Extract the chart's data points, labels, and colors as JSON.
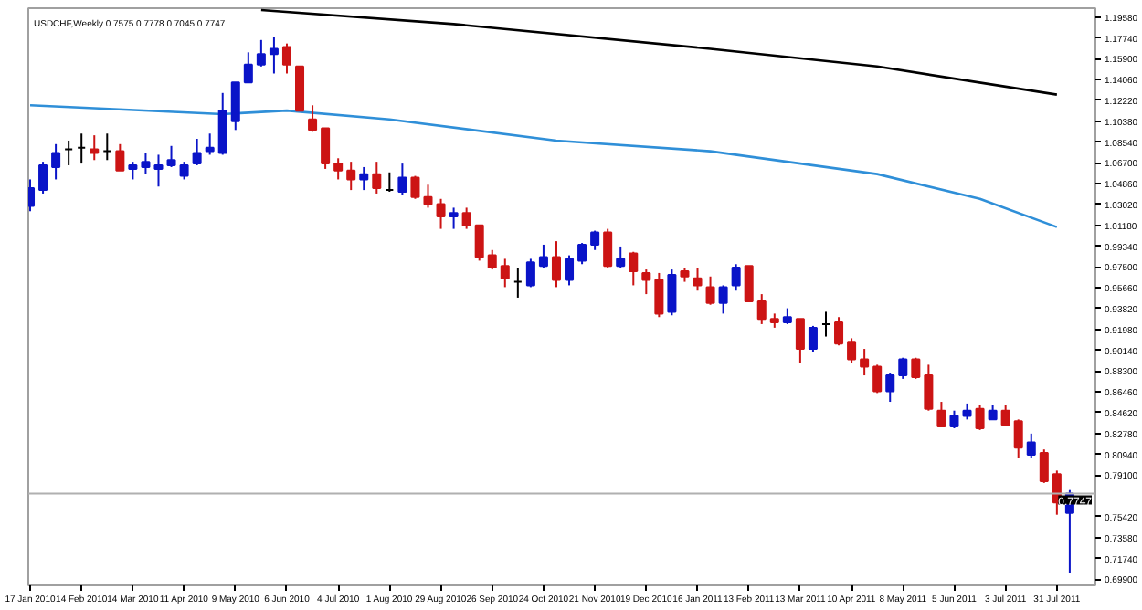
{
  "chart_data": {
    "type": "candlestick",
    "title": "USDCHF,Weekly 0.7575 0.7778 0.7045 0.7747",
    "x": [
      "2010-01-17",
      "2010-01-24",
      "2010-01-31",
      "2010-02-07",
      "2010-02-14",
      "2010-02-21",
      "2010-02-28",
      "2010-03-07",
      "2010-03-14",
      "2010-03-21",
      "2010-03-28",
      "2010-04-04",
      "2010-04-11",
      "2010-04-18",
      "2010-04-25",
      "2010-05-02",
      "2010-05-09",
      "2010-05-16",
      "2010-05-23",
      "2010-05-30",
      "2010-06-06",
      "2010-06-13",
      "2010-06-20",
      "2010-06-27",
      "2010-07-04",
      "2010-07-11",
      "2010-07-18",
      "2010-07-25",
      "2010-08-01",
      "2010-08-08",
      "2010-08-15",
      "2010-08-22",
      "2010-08-29",
      "2010-09-05",
      "2010-09-12",
      "2010-09-19",
      "2010-09-26",
      "2010-10-03",
      "2010-10-10",
      "2010-10-17",
      "2010-10-24",
      "2010-10-31",
      "2010-11-07",
      "2010-11-14",
      "2010-11-21",
      "2010-11-28",
      "2010-12-05",
      "2010-12-12",
      "2010-12-19",
      "2010-12-26",
      "2011-01-02",
      "2011-01-09",
      "2011-01-16",
      "2011-01-23",
      "2011-01-30",
      "2011-02-06",
      "2011-02-13",
      "2011-02-20",
      "2011-02-27",
      "2011-03-06",
      "2011-03-13",
      "2011-03-20",
      "2011-03-27",
      "2011-04-03",
      "2011-04-10",
      "2011-04-17",
      "2011-04-24",
      "2011-05-01",
      "2011-05-08",
      "2011-05-15",
      "2011-05-22",
      "2011-05-29",
      "2011-06-05",
      "2011-06-12",
      "2011-06-19",
      "2011-06-26",
      "2011-07-03",
      "2011-07-10",
      "2011-07-17",
      "2011-07-24",
      "2011-07-31",
      "2011-08-07"
    ],
    "ohlc": [
      [
        1.029,
        1.0524,
        1.0243,
        1.0446
      ],
      [
        1.043,
        1.068,
        1.0399,
        1.0649
      ],
      [
        1.0633,
        1.0836,
        1.0524,
        1.0758
      ],
      [
        1.0789,
        1.0867,
        1.0649,
        1.0789
      ],
      [
        1.0805,
        1.0929,
        1.0664,
        1.0805
      ],
      [
        1.0789,
        1.0914,
        1.0695,
        1.0758
      ],
      [
        1.0773,
        1.0929,
        1.0695,
        1.0773
      ],
      [
        1.0773,
        1.0836,
        1.0602,
        1.0602
      ],
      [
        1.0617,
        1.068,
        1.0524,
        1.0649
      ],
      [
        1.0633,
        1.0758,
        1.0571,
        1.068
      ],
      [
        1.0617,
        1.0742,
        1.0461,
        1.0649
      ],
      [
        1.0649,
        1.082,
        1.0633,
        1.0695
      ],
      [
        1.0555,
        1.068,
        1.0524,
        1.0649
      ],
      [
        1.0664,
        1.0883,
        1.0649,
        1.0758
      ],
      [
        1.0773,
        1.0929,
        1.0742,
        1.0805
      ],
      [
        1.0758,
        1.1288,
        1.0742,
        1.1132
      ],
      [
        1.1039,
        1.1382,
        1.0961,
        1.1382
      ],
      [
        1.1382,
        1.1647,
        1.1382,
        1.1538
      ],
      [
        1.1538,
        1.1756,
        1.1522,
        1.1631
      ],
      [
        1.1631,
        1.1787,
        1.146,
        1.1678
      ],
      [
        1.1694,
        1.1725,
        1.146,
        1.1538
      ],
      [
        1.1522,
        1.1522,
        1.1132,
        1.1132
      ],
      [
        1.1054,
        1.1179,
        1.0945,
        1.0961
      ],
      [
        1.0976,
        1.0976,
        1.0617,
        1.0664
      ],
      [
        1.0664,
        1.0711,
        1.0524,
        1.0602
      ],
      [
        1.0602,
        1.068,
        1.043,
        1.0524
      ],
      [
        1.0524,
        1.0633,
        1.043,
        1.0571
      ],
      [
        1.0571,
        1.068,
        1.0399,
        1.0446
      ],
      [
        1.043,
        1.0586,
        1.0415,
        1.043
      ],
      [
        1.0415,
        1.0664,
        1.0383,
        1.0539
      ],
      [
        1.0539,
        1.0555,
        1.0352,
        1.0368
      ],
      [
        1.0368,
        1.0477,
        1.0274,
        1.0305
      ],
      [
        1.0305,
        1.0352,
        1.0087,
        1.0196
      ],
      [
        1.0196,
        1.0274,
        1.0087,
        1.0227
      ],
      [
        1.0227,
        1.0274,
        1.0087,
        1.0118
      ],
      [
        1.0118,
        1.0118,
        0.9806,
        0.9837
      ],
      [
        0.9853,
        0.99,
        0.9728,
        0.9744
      ],
      [
        0.9759,
        0.9822,
        0.9572,
        0.965
      ],
      [
        0.9619,
        0.9744,
        0.9479,
        0.9619
      ],
      [
        0.9588,
        0.9822,
        0.9572,
        0.9791
      ],
      [
        0.9759,
        0.9947,
        0.9744,
        0.9837
      ],
      [
        0.9837,
        0.9978,
        0.9572,
        0.9635
      ],
      [
        0.9635,
        0.9853,
        0.9588,
        0.9822
      ],
      [
        0.9806,
        0.9962,
        0.9775,
        0.9947
      ],
      [
        0.9947,
        1.0071,
        0.99,
        1.0056
      ],
      [
        1.0056,
        1.0087,
        0.9744,
        0.9759
      ],
      [
        0.9759,
        0.9931,
        0.9744,
        0.9822
      ],
      [
        0.9869,
        0.9884,
        0.9588,
        0.9713
      ],
      [
        0.9697,
        0.9728,
        0.951,
        0.9635
      ],
      [
        0.9635,
        0.9697,
        0.9307,
        0.9338
      ],
      [
        0.9354,
        0.9728,
        0.9323,
        0.9681
      ],
      [
        0.9713,
        0.9744,
        0.9619,
        0.9666
      ],
      [
        0.965,
        0.9744,
        0.9541,
        0.9588
      ],
      [
        0.9572,
        0.9666,
        0.9416,
        0.9432
      ],
      [
        0.9432,
        0.9588,
        0.9338,
        0.9572
      ],
      [
        0.9588,
        0.9775,
        0.9541,
        0.9744
      ],
      [
        0.9759,
        0.9759,
        0.9447,
        0.9447
      ],
      [
        0.9447,
        0.951,
        0.9245,
        0.9291
      ],
      [
        0.9291,
        0.9338,
        0.9213,
        0.926
      ],
      [
        0.926,
        0.9385,
        0.9245,
        0.9307
      ],
      [
        0.9291,
        0.9291,
        0.8901,
        0.9026
      ],
      [
        0.9026,
        0.9229,
        0.8995,
        0.9213
      ],
      [
        0.9245,
        0.9354,
        0.9135,
        0.9245
      ],
      [
        0.926,
        0.9307,
        0.9057,
        0.9073
      ],
      [
        0.9089,
        0.912,
        0.8901,
        0.8933
      ],
      [
        0.8933,
        0.9026,
        0.8792,
        0.887
      ],
      [
        0.887,
        0.8886,
        0.8636,
        0.8652
      ],
      [
        0.8652,
        0.8808,
        0.8558,
        0.8792
      ],
      [
        0.8792,
        0.8948,
        0.8761,
        0.8933
      ],
      [
        0.8933,
        0.8948,
        0.8761,
        0.8777
      ],
      [
        0.8792,
        0.8886,
        0.848,
        0.8496
      ],
      [
        0.848,
        0.8558,
        0.834,
        0.834
      ],
      [
        0.834,
        0.848,
        0.8324,
        0.8433
      ],
      [
        0.8433,
        0.8543,
        0.8402,
        0.848
      ],
      [
        0.8496,
        0.8527,
        0.8309,
        0.8324
      ],
      [
        0.8402,
        0.8527,
        0.8402,
        0.848
      ],
      [
        0.848,
        0.8527,
        0.8355,
        0.8355
      ],
      [
        0.8387,
        0.8402,
        0.8059,
        0.8153
      ],
      [
        0.809,
        0.8277,
        0.8059,
        0.8199
      ],
      [
        0.8106,
        0.8137,
        0.7841,
        0.7856
      ],
      [
        0.7919,
        0.795,
        0.756,
        0.7669
      ],
      [
        0.7575,
        0.7778,
        0.7045,
        0.7747
      ]
    ],
    "colors": [
      "#0a14c8",
      "#0a14c8",
      "#0a14c8",
      "#000000",
      "#000000",
      "#cc1414",
      "#000000",
      "#cc1414",
      "#0a14c8",
      "#0a14c8",
      "#0a14c8",
      "#0a14c8",
      "#0a14c8",
      "#0a14c8",
      "#0a14c8",
      "#0a14c8",
      "#0a14c8",
      "#0a14c8",
      "#0a14c8",
      "#0a14c8",
      "#cc1414",
      "#cc1414",
      "#cc1414",
      "#cc1414",
      "#cc1414",
      "#cc1414",
      "#0a14c8",
      "#cc1414",
      "#000000",
      "#0a14c8",
      "#cc1414",
      "#cc1414",
      "#cc1414",
      "#0a14c8",
      "#cc1414",
      "#cc1414",
      "#cc1414",
      "#cc1414",
      "#000000",
      "#0a14c8",
      "#0a14c8",
      "#cc1414",
      "#0a14c8",
      "#0a14c8",
      "#0a14c8",
      "#cc1414",
      "#0a14c8",
      "#cc1414",
      "#cc1414",
      "#cc1414",
      "#0a14c8",
      "#cc1414",
      "#cc1414",
      "#cc1414",
      "#0a14c8",
      "#0a14c8",
      "#cc1414",
      "#cc1414",
      "#cc1414",
      "#0a14c8",
      "#cc1414",
      "#0a14c8",
      "#000000",
      "#cc1414",
      "#cc1414",
      "#cc1414",
      "#cc1414",
      "#0a14c8",
      "#0a14c8",
      "#cc1414",
      "#cc1414",
      "#cc1414",
      "#0a14c8",
      "#0a14c8",
      "#cc1414",
      "#0a14c8",
      "#cc1414",
      "#cc1414",
      "#0a14c8",
      "#cc1414",
      "#cc1414",
      "#0a14c8"
    ],
    "series": [
      {
        "type": "line",
        "color": "#000000",
        "x": [
          "2010-05-23",
          "2010-09-05",
          "2011-01-23",
          "2011-04-24",
          "2011-07-31"
        ],
        "values": [
          1.2021,
          1.1897,
          1.1678,
          1.1522,
          1.1273
        ]
      },
      {
        "type": "line",
        "color": "#2f8fd8",
        "x": [
          "2010-01-17",
          "2010-05-02",
          "2010-06-06",
          "2010-08-01",
          "2010-10-31",
          "2011-01-23",
          "2011-04-24",
          "2011-06-19",
          "2011-07-31"
        ],
        "values": [
          1.1179,
          1.1101,
          1.1132,
          1.1054,
          1.0867,
          1.0773,
          1.0571,
          1.0352,
          1.0103
        ]
      }
    ],
    "ref_lines": [
      {
        "axis": "y",
        "value": 0.7747,
        "label": "0.7747",
        "color": "#b0b0b0"
      }
    ],
    "xlim": [
      "2010-01-16",
      "2011-08-21"
    ],
    "xticks": [
      {
        "value": "2010-01-17",
        "label": "17 Jan 2010"
      },
      {
        "value": "2010-02-14",
        "label": "14 Feb 2010"
      },
      {
        "value": "2010-03-14",
        "label": "14 Mar 2010"
      },
      {
        "value": "2010-04-11",
        "label": "11 Apr 2010"
      },
      {
        "value": "2010-05-09",
        "label": "9 May 2010"
      },
      {
        "value": "2010-06-06",
        "label": "6 Jun 2010"
      },
      {
        "value": "2010-07-04",
        "label": "4 Jul 2010"
      },
      {
        "value": "2010-08-01",
        "label": "1 Aug 2010"
      },
      {
        "value": "2010-08-29",
        "label": "29 Aug 2010"
      },
      {
        "value": "2010-09-26",
        "label": "26 Sep 2010"
      },
      {
        "value": "2010-10-24",
        "label": "24 Oct 2010"
      },
      {
        "value": "2010-11-21",
        "label": "21 Nov 2010"
      },
      {
        "value": "2010-12-19",
        "label": "19 Dec 2010"
      },
      {
        "value": "2011-01-16",
        "label": "16 Jan 2011"
      },
      {
        "value": "2011-02-13",
        "label": "13 Feb 2011"
      },
      {
        "value": "2011-03-13",
        "label": "13 Mar 2011"
      },
      {
        "value": "2011-04-10",
        "label": "10 Apr 2011"
      },
      {
        "value": "2011-05-08",
        "label": "8 May 2011"
      },
      {
        "value": "2011-06-05",
        "label": "5 Jun 2011"
      },
      {
        "value": "2011-07-03",
        "label": "3 Jul 2011"
      },
      {
        "value": "2011-07-31",
        "label": "31 Jul 2011"
      }
    ],
    "ylim": [
      0.6936,
      1.2037
    ],
    "yticks": [
      {
        "value": 1.1958,
        "label": "1.19580"
      },
      {
        "value": 1.1774,
        "label": "1.17740"
      },
      {
        "value": 1.159,
        "label": "1.15900"
      },
      {
        "value": 1.1406,
        "label": "1.14060"
      },
      {
        "value": 1.1222,
        "label": "1.12220"
      },
      {
        "value": 1.1038,
        "label": "1.10380"
      },
      {
        "value": 1.0854,
        "label": "1.08540"
      },
      {
        "value": 1.067,
        "label": "1.06700"
      },
      {
        "value": 1.0486,
        "label": "1.04860"
      },
      {
        "value": 1.0302,
        "label": "1.03020"
      },
      {
        "value": 1.0118,
        "label": "1.01180"
      },
      {
        "value": 0.9934,
        "label": "0.99340"
      },
      {
        "value": 0.975,
        "label": "0.97500"
      },
      {
        "value": 0.9566,
        "label": "0.95660"
      },
      {
        "value": 0.9382,
        "label": "0.93820"
      },
      {
        "value": 0.9198,
        "label": "0.91980"
      },
      {
        "value": 0.9014,
        "label": "0.90140"
      },
      {
        "value": 0.883,
        "label": "0.88300"
      },
      {
        "value": 0.8646,
        "label": "0.86460"
      },
      {
        "value": 0.8462,
        "label": "0.84620"
      },
      {
        "value": 0.8278,
        "label": "0.82780"
      },
      {
        "value": 0.8094,
        "label": "0.80940"
      },
      {
        "value": 0.791,
        "label": "0.79100"
      },
      {
        "value": 0.7542,
        "label": "0.75420"
      },
      {
        "value": 0.7358,
        "label": "0.73580"
      },
      {
        "value": 0.7174,
        "label": "0.71740"
      },
      {
        "value": 0.699,
        "label": "0.69900"
      }
    ]
  }
}
